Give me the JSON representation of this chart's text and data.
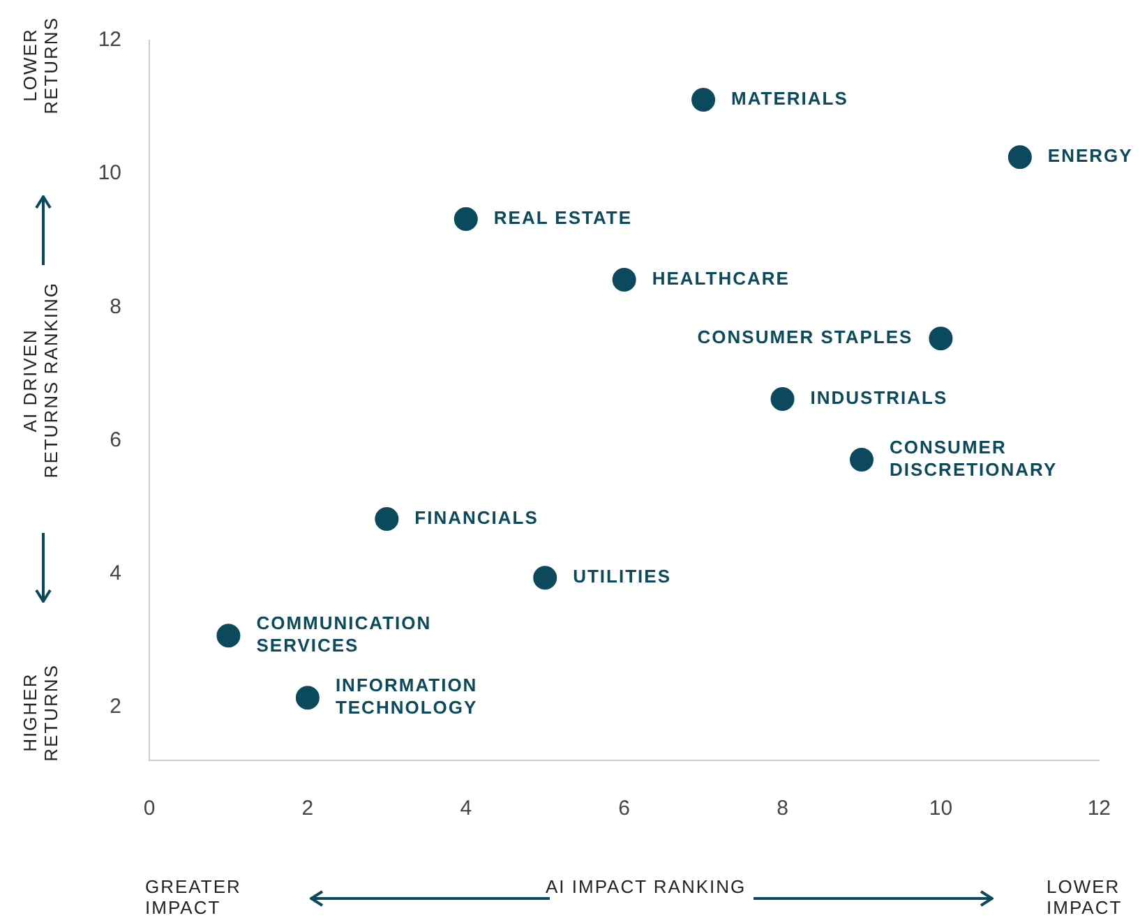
{
  "chart_data": {
    "type": "scatter",
    "xlabel": "AI IMPACT RANKING",
    "ylabel": "AI DRIVEN\nRETURNS RANKING",
    "x": [
      1,
      2,
      3,
      4,
      5,
      6,
      7,
      8,
      9,
      10,
      11
    ],
    "values": [
      3.07,
      2.14,
      4.82,
      9.32,
      3.94,
      8.41,
      11.11,
      6.62,
      5.71,
      7.53,
      10.25
    ],
    "color": "#0b4a5c",
    "marker": "circle",
    "grid": false,
    "xlim": [
      0,
      12
    ],
    "xticks": [
      0,
      2,
      4,
      6,
      8,
      10,
      12
    ],
    "ylim": [
      1.2,
      12
    ],
    "yticks": [
      2,
      4,
      6,
      8,
      10,
      12
    ],
    "annotations": [
      {
        "text": "COMMUNICATION\nSERVICES",
        "x": 1,
        "y": 3.07
      },
      {
        "text": "INFORMATION\nTECHNOLOGY",
        "x": 2,
        "y": 2.14
      },
      {
        "text": "FINANCIALS",
        "x": 3,
        "y": 4.82
      },
      {
        "text": "REAL ESTATE",
        "x": 4,
        "y": 9.32
      },
      {
        "text": "UTILITIES",
        "x": 5,
        "y": 3.94
      },
      {
        "text": "HEALTHCARE",
        "x": 6,
        "y": 8.41
      },
      {
        "text": "MATERIALS",
        "x": 7,
        "y": 11.11
      },
      {
        "text": "INDUSTRIALS",
        "x": 8,
        "y": 6.62
      },
      {
        "text": "CONSUMER\nDISCRETIONARY",
        "x": 9,
        "y": 5.71
      },
      {
        "text": "CONSUMER STAPLES",
        "x": 10,
        "y": 7.53
      },
      {
        "text": "ENERGY",
        "x": 11,
        "y": 10.25
      },
      "LOWER\nRETURNS",
      "HIGHER\nRETURNS",
      "GREATER\nIMPACT",
      "LOWER\nIMPACT"
    ]
  }
}
